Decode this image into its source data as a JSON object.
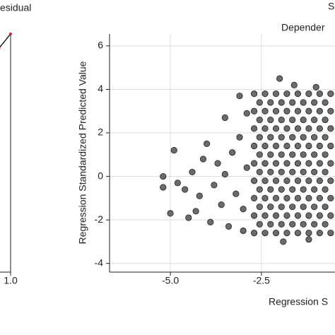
{
  "chart_data": [
    {
      "type": "line",
      "title": "esidual",
      "xlim": [
        0,
        1
      ],
      "ylim": [
        0,
        1
      ],
      "xticks": [
        {
          "value": 1,
          "label": "1.0"
        }
      ],
      "series": [
        {
          "color": "#cc2222",
          "x": [
            0.9,
            0.95,
            1.0
          ],
          "values": [
            0.88,
            0.94,
            1.0
          ]
        }
      ]
    },
    {
      "type": "scatter",
      "title": "S",
      "subtitle": "Depender",
      "x_label": "Regression S",
      "y_label": "Regression Standardized Predicted Value",
      "xlim": [
        -6.67,
        -0.48
      ],
      "ylim": [
        -4.4,
        6.55
      ],
      "xticks": [
        {
          "value": -5,
          "label": "-5.0"
        },
        {
          "value": -2.5,
          "label": "-2.5"
        }
      ],
      "yticks": [
        -4,
        -2,
        0,
        2,
        4,
        6
      ],
      "grid": true,
      "series": [
        {
          "color": "#6b6b6b",
          "x": [
            -5.2,
            -5.2,
            -5.0,
            -4.9,
            -4.8,
            -4.6,
            -4.5,
            -4.4,
            -4.3,
            -4.2,
            -4.1,
            -4.0,
            -3.9,
            -3.8,
            -3.7,
            -3.6,
            -3.5,
            -3.5,
            -3.4,
            -3.3,
            -3.2,
            -3.1,
            -3.1,
            -3.0,
            -3.0,
            -2.9,
            -2.9,
            -2.0,
            -1.6,
            -1.0,
            -1.9,
            -1.2,
            -2.7,
            -2.7,
            -2.7,
            -2.7,
            -2.7,
            -2.7,
            -2.7,
            -2.7,
            -2.7,
            -2.4,
            -2.4,
            -2.4,
            -2.4,
            -2.4,
            -2.4,
            -2.4,
            -2.4,
            -2.4,
            -2.1,
            -2.1,
            -2.1,
            -2.1,
            -2.1,
            -2.1,
            -2.1,
            -2.1,
            -2.1,
            -1.8,
            -1.8,
            -1.8,
            -1.8,
            -1.8,
            -1.8,
            -1.8,
            -1.8,
            -1.8,
            -1.5,
            -1.5,
            -1.5,
            -1.5,
            -1.5,
            -1.5,
            -1.5,
            -1.5,
            -1.5,
            -1.2,
            -1.2,
            -1.2,
            -1.2,
            -1.2,
            -1.2,
            -1.2,
            -1.2,
            -1.2,
            -0.9,
            -0.9,
            -0.9,
            -0.9,
            -0.9,
            -0.9,
            -0.9,
            -0.9,
            -0.9,
            -0.6,
            -0.6,
            -0.6,
            -0.6,
            -0.6,
            -0.6,
            -0.6,
            -0.6,
            -0.6,
            -2.55,
            -2.55,
            -2.55,
            -2.55,
            -2.55,
            -2.55,
            -2.55,
            -2.55,
            -2.25,
            -2.25,
            -2.25,
            -2.25,
            -2.25,
            -2.25,
            -2.25,
            -2.25,
            -1.95,
            -1.95,
            -1.95,
            -1.95,
            -1.95,
            -1.95,
            -1.95,
            -1.95,
            -1.65,
            -1.65,
            -1.65,
            -1.65,
            -1.65,
            -1.65,
            -1.65,
            -1.65,
            -1.35,
            -1.35,
            -1.35,
            -1.35,
            -1.35,
            -1.35,
            -1.35,
            -1.35,
            -1.05,
            -1.05,
            -1.05,
            -1.05,
            -1.05,
            -1.05,
            -1.05,
            -1.05,
            -0.75,
            -0.75,
            -0.75,
            -0.75,
            -0.75,
            -0.75,
            -0.75,
            -0.75
          ],
          "values": [
            0,
            -0.5,
            -1.7,
            1.2,
            -0.3,
            -0.6,
            -1.9,
            0.2,
            -1.6,
            -0.9,
            0.8,
            1.5,
            -2.1,
            -0.4,
            0.6,
            -1.3,
            2.7,
            0.1,
            -2.3,
            1.1,
            -0.8,
            3.7,
            1.8,
            -1.5,
            -2.5,
            2.9,
            0.4,
            4.5,
            4.2,
            4.1,
            -3.0,
            -2.9,
            -2.6,
            -1.8,
            -1.0,
            -0.2,
            0.6,
            1.4,
            2.2,
            3.0,
            3.8,
            -2.6,
            -1.8,
            -1.0,
            -0.2,
            0.6,
            1.4,
            2.2,
            3.0,
            3.8,
            -2.6,
            -1.8,
            -1.0,
            -0.2,
            0.6,
            1.4,
            2.2,
            3.0,
            3.8,
            -2.6,
            -1.8,
            -1.0,
            -0.2,
            0.6,
            1.4,
            2.2,
            3.0,
            3.8,
            -2.6,
            -1.8,
            -1.0,
            -0.2,
            0.6,
            1.4,
            2.2,
            3.0,
            3.8,
            -2.6,
            -1.8,
            -1.0,
            -0.2,
            0.6,
            1.4,
            2.2,
            3.0,
            3.8,
            -2.6,
            -1.8,
            -1.0,
            -0.2,
            0.6,
            1.4,
            2.2,
            3.0,
            3.8,
            -2.6,
            -1.8,
            -1.0,
            -0.2,
            0.6,
            1.4,
            2.2,
            3.0,
            3.8,
            -2.2,
            -1.4,
            -0.6,
            0.2,
            1.0,
            1.8,
            2.6,
            3.4,
            -2.2,
            -1.4,
            -0.6,
            0.2,
            1.0,
            1.8,
            2.6,
            3.4,
            -2.2,
            -1.4,
            -0.6,
            0.2,
            1.0,
            1.8,
            2.6,
            3.4,
            -2.2,
            -1.4,
            -0.6,
            0.2,
            1.0,
            1.8,
            2.6,
            3.4,
            -2.2,
            -1.4,
            -0.6,
            0.2,
            1.0,
            1.8,
            2.6,
            3.4,
            -2.2,
            -1.4,
            -0.6,
            0.2,
            1.0,
            1.8,
            2.6,
            3.4,
            -2.2,
            -1.4,
            -0.6,
            0.2,
            1.0,
            1.8,
            2.6,
            3.4
          ]
        }
      ]
    }
  ]
}
